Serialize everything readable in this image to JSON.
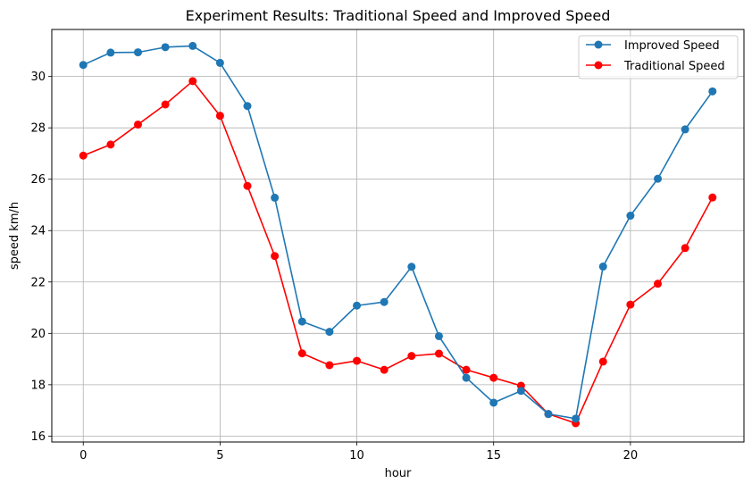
{
  "chart_data": {
    "type": "line",
    "title": "Experiment Results: Traditional Speed and Improved Speed",
    "xlabel": "hour",
    "ylabel": "speed km/h",
    "xlim": [
      -1.15,
      24.15
    ],
    "ylim": [
      15.77,
      31.83
    ],
    "xticks": [
      0,
      5,
      10,
      15,
      20
    ],
    "yticks": [
      16,
      18,
      20,
      22,
      24,
      26,
      28,
      30
    ],
    "grid": true,
    "legend_position": "top-right",
    "x": [
      0,
      1,
      2,
      3,
      4,
      5,
      6,
      7,
      8,
      9,
      10,
      11,
      12,
      13,
      14,
      15,
      16,
      17,
      18,
      19,
      20,
      21,
      22,
      23
    ],
    "series": [
      {
        "name": "Improved Speed",
        "color": "#1f77b4",
        "values": [
          30.45,
          30.93,
          30.94,
          31.14,
          31.19,
          30.53,
          28.85,
          25.28,
          20.46,
          20.06,
          21.08,
          21.22,
          22.59,
          19.89,
          18.27,
          17.3,
          17.76,
          16.86,
          16.68,
          22.6,
          24.58,
          26.02,
          27.94,
          29.42
        ]
      },
      {
        "name": "Traditional Speed",
        "color": "#ff0000",
        "values": [
          26.92,
          27.35,
          28.13,
          28.91,
          29.82,
          28.47,
          25.74,
          23.01,
          19.22,
          18.76,
          18.93,
          18.58,
          19.12,
          19.21,
          18.58,
          18.27,
          17.96,
          16.86,
          16.5,
          18.9,
          21.12,
          21.93,
          23.32,
          25.29
        ]
      }
    ]
  }
}
